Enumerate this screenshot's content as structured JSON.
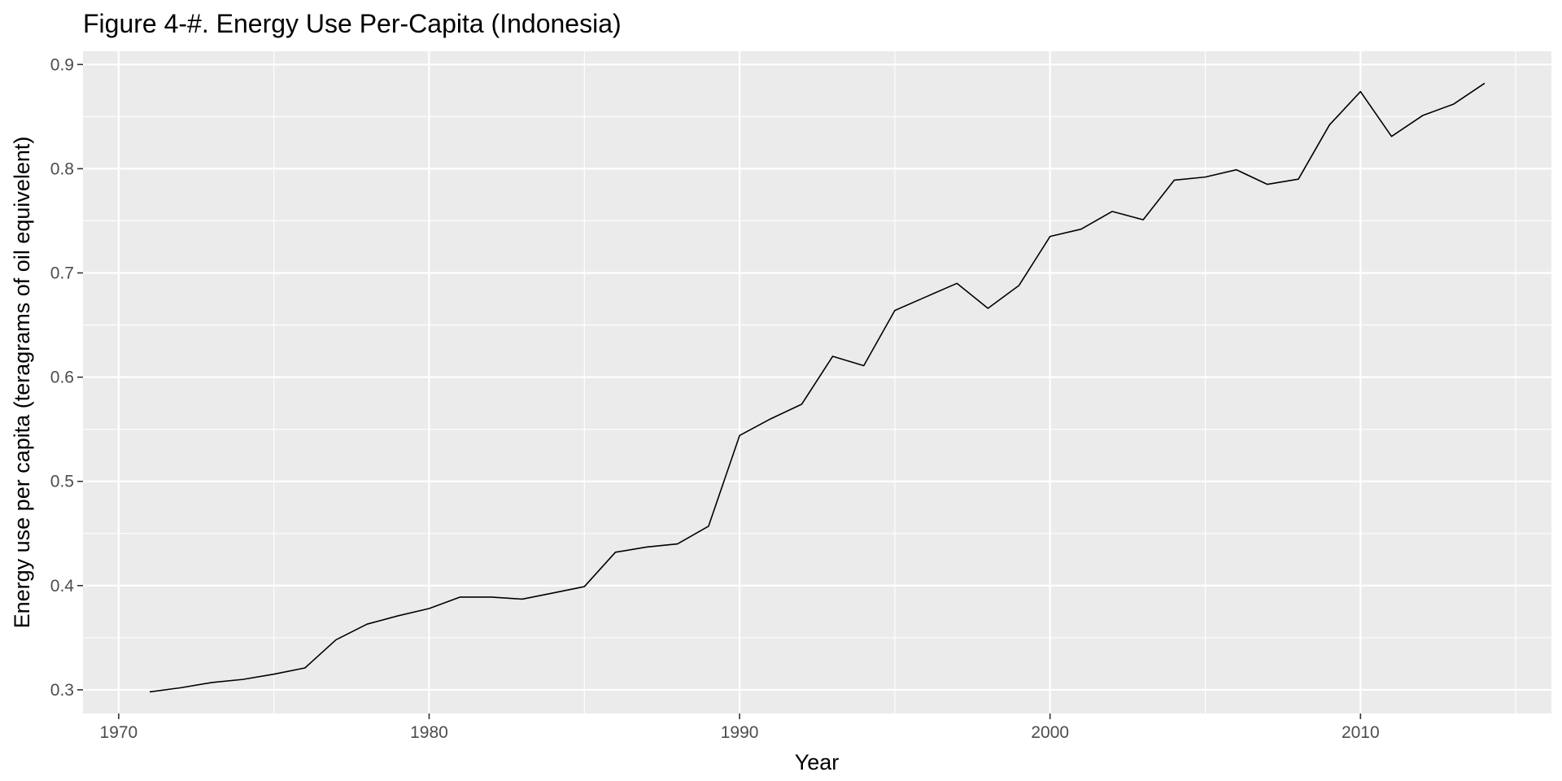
{
  "chart_data": {
    "type": "line",
    "title": "Figure 4-#. Energy Use Per-Capita (Indonesia)",
    "xlabel": "Year",
    "ylabel": "Energy use per capita (teragrams of oil equivelent)",
    "xlim": [
      1968.85,
      2016.15
    ],
    "ylim": [
      0.2773,
      0.9127
    ],
    "x_ticks": [
      1970,
      1980,
      1990,
      2000,
      2010
    ],
    "x_tick_labels": [
      "1970",
      "1980",
      "1990",
      "2000",
      "2010"
    ],
    "y_ticks": [
      0.3,
      0.4,
      0.5,
      0.6,
      0.7,
      0.8,
      0.9
    ],
    "y_tick_labels": [
      "0.3",
      "0.4",
      "0.5",
      "0.6",
      "0.7",
      "0.8",
      "0.9"
    ],
    "x_minor_ticks": [
      1975,
      1985,
      1995,
      2005,
      2015
    ],
    "y_minor_ticks": [
      0.35,
      0.45,
      0.55,
      0.65,
      0.75,
      0.85
    ],
    "grid": true,
    "legend": "none",
    "colors": {
      "panel_background": "#ebebeb",
      "grid_line": "#ffffff",
      "series_line": "#000000",
      "tick_mark": "#333333"
    },
    "series": [
      {
        "x": [
          1971,
          1972,
          1973,
          1974,
          1975,
          1976,
          1977,
          1978,
          1979,
          1980,
          1981,
          1982,
          1983,
          1984,
          1985,
          1986,
          1987,
          1988,
          1989,
          1990,
          1991,
          1992,
          1993,
          1994,
          1995,
          1996,
          1997,
          1998,
          1999,
          2000,
          2001,
          2002,
          2003,
          2004,
          2005,
          2006,
          2007,
          2008,
          2009,
          2010,
          2011,
          2012,
          2013,
          2014
        ],
        "values": [
          0.298,
          0.302,
          0.307,
          0.31,
          0.315,
          0.321,
          0.348,
          0.363,
          0.371,
          0.378,
          0.389,
          0.389,
          0.387,
          0.393,
          0.399,
          0.432,
          0.437,
          0.44,
          0.457,
          0.544,
          0.56,
          0.574,
          0.62,
          0.611,
          0.664,
          0.677,
          0.69,
          0.666,
          0.688,
          0.735,
          0.742,
          0.759,
          0.751,
          0.789,
          0.792,
          0.799,
          0.785,
          0.79,
          0.842,
          0.874,
          0.831,
          0.851,
          0.862,
          0.882
        ]
      }
    ]
  }
}
